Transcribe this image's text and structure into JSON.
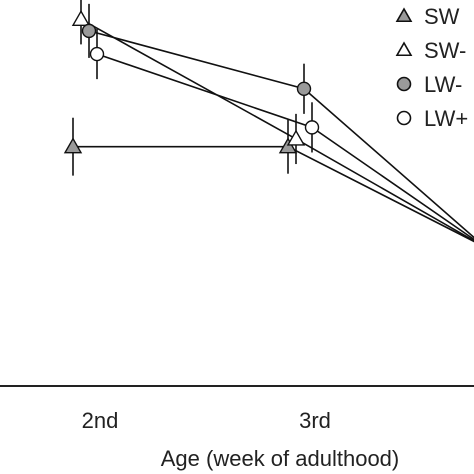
{
  "chart_data": {
    "type": "line",
    "xlabel": "Age (week of adulthood)",
    "categories": [
      "2nd",
      "3rd",
      ""
    ],
    "ylim": [
      0,
      1
    ],
    "grid": false,
    "legend_position": "top-right",
    "series": [
      {
        "name": "SW",
        "marker": "triangle",
        "fill": "#9a9a9a",
        "values": [
          0.62,
          0.62,
          0.36
        ],
        "errors": [
          0.075,
          0.07,
          0
        ]
      },
      {
        "name": "SW-",
        "marker": "triangle",
        "fill": "#ffffff",
        "values": [
          0.95,
          0.64,
          0.36
        ],
        "errors": [
          0.065,
          0.065,
          0
        ]
      },
      {
        "name": "LW-",
        "marker": "circle",
        "fill": "#9a9a9a",
        "values": [
          0.92,
          0.77,
          0.36
        ],
        "errors": [
          0.07,
          0.065,
          0
        ]
      },
      {
        "name": "LW+",
        "marker": "circle",
        "fill": "#ffffff",
        "values": [
          0.86,
          0.67,
          0.36
        ],
        "errors": [
          0.065,
          0.065,
          0
        ]
      }
    ]
  }
}
